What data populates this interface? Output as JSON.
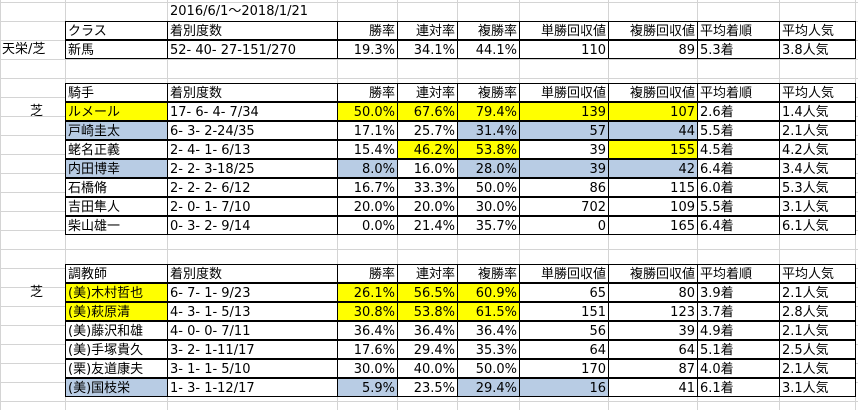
{
  "colors": {
    "yellow": "#ffff00",
    "blue": "#b8cce4",
    "grid": "#d4d4d4"
  },
  "period": "2016/6/1～2018/1/21",
  "class_section": {
    "label": "天栄/芝",
    "headers": [
      "クラス",
      "着別度数",
      "勝率",
      "連対率",
      "複勝率",
      "単勝回収値",
      "複勝回収値",
      "平均着順",
      "平均人気"
    ],
    "row": [
      "新馬",
      "52- 40- 27-151/270",
      "19.3%",
      "34.1%",
      "44.1%",
      "110",
      "89",
      "5.3着",
      "3.8人気"
    ]
  },
  "jockey_section": {
    "label": "芝",
    "headers": [
      "騎手",
      "着別度数",
      "勝率",
      "連対率",
      "複勝率",
      "単勝回収値",
      "複勝回収値",
      "平均着順",
      "平均人気"
    ],
    "rows": [
      {
        "cells": [
          "ルメール",
          "17- 6- 4- 7/34",
          "50.0%",
          "67.6%",
          "79.4%",
          "139",
          "107",
          "2.6着",
          "1.4人気"
        ],
        "hl": [
          "y",
          "",
          "y",
          "y",
          "y",
          "y",
          "y",
          "",
          ""
        ]
      },
      {
        "cells": [
          "戸崎圭太",
          "6- 3- 2-24/35",
          "17.1%",
          "25.7%",
          "31.4%",
          "57",
          "44",
          "5.5着",
          "2.1人気"
        ],
        "hl": [
          "b",
          "",
          "",
          "",
          "b",
          "b",
          "b",
          "",
          ""
        ]
      },
      {
        "cells": [
          "蛯名正義",
          "2- 4- 1- 6/13",
          "15.4%",
          "46.2%",
          "53.8%",
          "39",
          "155",
          "4.5着",
          "4.2人気"
        ],
        "hl": [
          "",
          "",
          "",
          "y",
          "y",
          "",
          "y",
          "",
          ""
        ]
      },
      {
        "cells": [
          "内田博幸",
          "2- 2- 3-18/25",
          "8.0%",
          "16.0%",
          "28.0%",
          "39",
          "42",
          "6.4着",
          "3.4人気"
        ],
        "hl": [
          "b",
          "",
          "b",
          "",
          "b",
          "b",
          "b",
          "",
          ""
        ]
      },
      {
        "cells": [
          "石橋脩",
          "2- 2- 2- 6/12",
          "16.7%",
          "33.3%",
          "50.0%",
          "86",
          "115",
          "6.0着",
          "5.3人気"
        ],
        "hl": [
          "",
          "",
          "",
          "",
          "",
          "",
          "",
          "",
          ""
        ]
      },
      {
        "cells": [
          "吉田隼人",
          "2- 0- 1- 7/10",
          "20.0%",
          "20.0%",
          "30.0%",
          "702",
          "109",
          "5.5着",
          "3.1人気"
        ],
        "hl": [
          "",
          "",
          "",
          "",
          "",
          "",
          "",
          "",
          ""
        ]
      },
      {
        "cells": [
          "柴山雄一",
          "0- 3- 2- 9/14",
          "0.0%",
          "21.4%",
          "35.7%",
          "0",
          "165",
          "6.4着",
          "6.1人気"
        ],
        "hl": [
          "",
          "",
          "",
          "",
          "",
          "",
          "",
          "",
          ""
        ]
      }
    ]
  },
  "trainer_section": {
    "label": "芝",
    "headers": [
      "調教師",
      "着別度数",
      "勝率",
      "連対率",
      "複勝率",
      "単勝回収値",
      "複勝回収値",
      "平均着順",
      "平均人気"
    ],
    "rows": [
      {
        "cells": [
          "(美)木村哲也",
          "6- 7- 1- 9/23",
          "26.1%",
          "56.5%",
          "60.9%",
          "65",
          "80",
          "3.9着",
          "2.1人気"
        ],
        "hl": [
          "y",
          "",
          "y",
          "y",
          "y",
          "",
          "",
          "",
          ""
        ]
      },
      {
        "cells": [
          "(美)萩原清",
          "4- 3- 1- 5/13",
          "30.8%",
          "53.8%",
          "61.5%",
          "151",
          "123",
          "3.7着",
          "2.8人気"
        ],
        "hl": [
          "y",
          "",
          "y",
          "y",
          "y",
          "",
          "",
          "",
          ""
        ]
      },
      {
        "cells": [
          "(美)藤沢和雄",
          "4- 0- 0- 7/11",
          "36.4%",
          "36.4%",
          "36.4%",
          "56",
          "39",
          "4.9着",
          "2.1人気"
        ],
        "hl": [
          "",
          "",
          "",
          "",
          "",
          "",
          "",
          "",
          ""
        ]
      },
      {
        "cells": [
          "(美)手塚貴久",
          "3- 2- 1-11/17",
          "17.6%",
          "29.4%",
          "35.3%",
          "64",
          "64",
          "5.1着",
          "2.5人気"
        ],
        "hl": [
          "",
          "",
          "",
          "",
          "",
          "",
          "",
          "",
          ""
        ]
      },
      {
        "cells": [
          "(栗)友道康夫",
          "3- 1- 1- 5/10",
          "30.0%",
          "40.0%",
          "50.0%",
          "170",
          "87",
          "4.0着",
          "2.1人気"
        ],
        "hl": [
          "",
          "",
          "",
          "",
          "",
          "",
          "",
          "",
          ""
        ]
      },
      {
        "cells": [
          "(美)国枝栄",
          "1- 3- 1-12/17",
          "5.9%",
          "23.5%",
          "29.4%",
          "16",
          "41",
          "6.1着",
          "3.1人気"
        ],
        "hl": [
          "b",
          "",
          "b",
          "",
          "b",
          "b",
          "",
          "",
          ""
        ]
      }
    ]
  }
}
